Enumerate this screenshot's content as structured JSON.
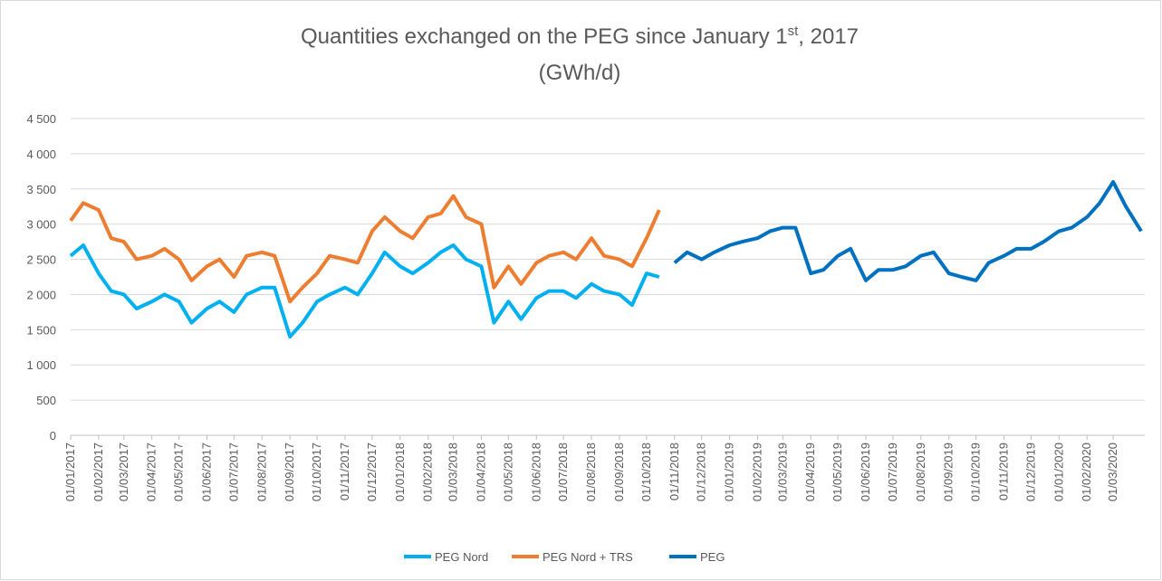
{
  "chart_data": {
    "type": "line",
    "title": {
      "main": "Quantities exchanged on the PEG since January 1",
      "sup": "st",
      "rest": ", 2017"
    },
    "subtitle": "(GWh/d)",
    "x": [
      "01/01/2017",
      "15/01/2017",
      "01/02/2017",
      "15/02/2017",
      "01/03/2017",
      "15/03/2017",
      "01/04/2017",
      "15/04/2017",
      "01/05/2017",
      "15/05/2017",
      "01/06/2017",
      "15/06/2017",
      "01/07/2017",
      "15/07/2017",
      "01/08/2017",
      "15/08/2017",
      "01/09/2017",
      "15/09/2017",
      "01/10/2017",
      "15/10/2017",
      "01/11/2017",
      "15/11/2017",
      "01/12/2017",
      "15/12/2017",
      "01/01/2018",
      "15/01/2018",
      "01/02/2018",
      "15/02/2018",
      "01/03/2018",
      "15/03/2018",
      "01/04/2018",
      "15/04/2018",
      "01/05/2018",
      "15/05/2018",
      "01/06/2018",
      "15/06/2018",
      "01/07/2018",
      "15/07/2018",
      "01/08/2018",
      "15/08/2018",
      "01/09/2018",
      "15/09/2018",
      "01/10/2018",
      "15/10/2018",
      "01/11/2018",
      "15/11/2018",
      "01/12/2018",
      "15/12/2018",
      "01/01/2019",
      "15/01/2019",
      "01/02/2019",
      "15/02/2019",
      "01/03/2019",
      "15/03/2019",
      "01/04/2019",
      "15/04/2019",
      "01/05/2019",
      "15/05/2019",
      "01/06/2019",
      "15/06/2019",
      "01/07/2019",
      "15/07/2019",
      "01/08/2019",
      "15/08/2019",
      "01/09/2019",
      "15/09/2019",
      "01/10/2019",
      "15/10/2019",
      "01/11/2019",
      "15/11/2019",
      "01/12/2019",
      "15/12/2019",
      "01/01/2020",
      "15/01/2020",
      "01/02/2020",
      "15/02/2020",
      "01/03/2020",
      "15/03/2020",
      "01/04/2020"
    ],
    "series": [
      {
        "name": "PEG Nord",
        "color": "#00b0f0",
        "values": [
          2550,
          2700,
          2300,
          2050,
          2000,
          1800,
          1900,
          2000,
          1900,
          1600,
          1800,
          1900,
          1750,
          2000,
          2100,
          2100,
          1400,
          1600,
          1900,
          2000,
          2100,
          2000,
          2300,
          2600,
          2400,
          2300,
          2450,
          2600,
          2700,
          2500,
          2400,
          1600,
          1900,
          1650,
          1950,
          2050,
          2050,
          1950,
          2150,
          2050,
          2000,
          1850,
          2300,
          2250,
          null,
          null,
          null,
          null,
          null,
          null,
          null,
          null,
          null,
          null,
          null,
          null,
          null,
          null,
          null,
          null,
          null,
          null,
          null,
          null,
          null,
          null,
          null,
          null,
          null,
          null,
          null,
          null,
          null,
          null,
          null,
          null,
          null,
          null,
          null
        ]
      },
      {
        "name": "PEG Nord + TRS",
        "color": "#ed7d31",
        "values": [
          3050,
          3300,
          3200,
          2800,
          2750,
          2500,
          2550,
          2650,
          2500,
          2200,
          2400,
          2500,
          2250,
          2550,
          2600,
          2550,
          1900,
          2100,
          2300,
          2550,
          2500,
          2450,
          2900,
          3100,
          2900,
          2800,
          3100,
          3150,
          3400,
          3100,
          3000,
          2100,
          2400,
          2150,
          2450,
          2550,
          2600,
          2500,
          2800,
          2550,
          2500,
          2400,
          2800,
          3200,
          null,
          null,
          null,
          null,
          null,
          null,
          null,
          null,
          null,
          null,
          null,
          null,
          null,
          null,
          null,
          null,
          null,
          null,
          null,
          null,
          null,
          null,
          null,
          null,
          null,
          null,
          null,
          null,
          null,
          null,
          null,
          null,
          null,
          null,
          null
        ]
      },
      {
        "name": "PEG",
        "color": "#0070c0",
        "values": [
          null,
          null,
          null,
          null,
          null,
          null,
          null,
          null,
          null,
          null,
          null,
          null,
          null,
          null,
          null,
          null,
          null,
          null,
          null,
          null,
          null,
          null,
          null,
          null,
          null,
          null,
          null,
          null,
          null,
          null,
          null,
          null,
          null,
          null,
          null,
          null,
          null,
          null,
          null,
          null,
          null,
          null,
          null,
          null,
          2450,
          2600,
          2500,
          2600,
          2700,
          2750,
          2800,
          2900,
          2950,
          2950,
          2300,
          2350,
          2550,
          2650,
          2200,
          2350,
          2350,
          2400,
          2550,
          2600,
          2300,
          2250,
          2200,
          2450,
          2550,
          2650,
          2650,
          2750,
          2900,
          2950,
          3100,
          3300,
          3600,
          3250,
          2900
        ]
      }
    ],
    "xlim": [
      "01/01/2017",
      "05/04/2020"
    ],
    "xticks": [
      "01/01/2017",
      "01/02/2017",
      "01/03/2017",
      "01/04/2017",
      "01/05/2017",
      "01/06/2017",
      "01/07/2017",
      "01/08/2017",
      "01/09/2017",
      "01/10/2017",
      "01/11/2017",
      "01/12/2017",
      "01/01/2018",
      "01/02/2018",
      "01/03/2018",
      "01/04/2018",
      "01/05/2018",
      "01/06/2018",
      "01/07/2018",
      "01/08/2018",
      "01/09/2018",
      "01/10/2018",
      "01/11/2018",
      "01/12/2018",
      "01/01/2019",
      "01/02/2019",
      "01/03/2019",
      "01/04/2019",
      "01/05/2019",
      "01/06/2019",
      "01/07/2019",
      "01/08/2019",
      "01/09/2019",
      "01/10/2019",
      "01/11/2019",
      "01/12/2019",
      "01/01/2020",
      "01/02/2020",
      "01/03/2020"
    ],
    "ylim": [
      0,
      4500
    ],
    "yticks": [
      0,
      500,
      {
        "value": 1000,
        "label": "1 000"
      },
      {
        "value": 1500,
        "label": "1 500"
      },
      {
        "value": 2000,
        "label": "2 000"
      },
      {
        "value": 2500,
        "label": "2 500"
      },
      {
        "value": 3000,
        "label": "3 000"
      },
      {
        "value": 3500,
        "label": "3 500"
      },
      {
        "value": 4000,
        "label": "4 000"
      },
      {
        "value": 4500,
        "label": "4 500"
      }
    ],
    "grid": true,
    "legend": "bottom"
  }
}
